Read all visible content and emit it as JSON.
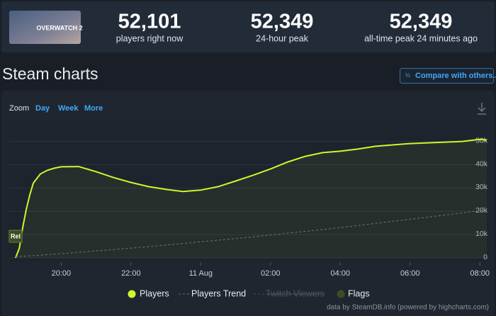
{
  "game_name": "OVERWATCH 2",
  "stats": [
    {
      "value": "52,101",
      "caption": "players right now"
    },
    {
      "value": "52,349",
      "caption": "24-hour peak"
    },
    {
      "value": "52,349",
      "caption": "all-time peak 24 minutes ago"
    }
  ],
  "section_title": "Steam charts",
  "compare_button": "Compare with others...",
  "zoom": {
    "label": "Zoom",
    "options": [
      "Day",
      "Week",
      "More"
    ]
  },
  "chart_data": {
    "type": "line",
    "x": [
      18.69,
      18.8,
      18.9,
      19.0,
      19.1,
      19.2,
      19.4,
      19.6,
      19.8,
      20.0,
      20.5,
      21.0,
      21.5,
      22.0,
      22.5,
      23.0,
      23.5,
      24.0,
      24.5,
      25.0,
      25.5,
      26.0,
      26.5,
      27.0,
      27.5,
      28.0,
      28.5,
      29.0,
      29.5,
      30.0,
      30.5,
      31.0,
      31.5,
      32.0,
      32.2
    ],
    "series": [
      {
        "name": "Players",
        "color": "#d2f52b",
        "values": [
          0,
          4200,
          13300,
          20900,
          27000,
          32100,
          36000,
          37600,
          38500,
          39100,
          39200,
          37000,
          34500,
          32400,
          30600,
          29400,
          28500,
          29100,
          30600,
          33000,
          35500,
          38200,
          41200,
          43600,
          45200,
          45800,
          46700,
          47900,
          48500,
          49100,
          49400,
          49700,
          50000,
          50900,
          50600
        ]
      },
      {
        "name": "Players Trend",
        "color": "#6b7480",
        "dashed": true,
        "values": [
          500,
          600,
          700,
          800,
          900,
          1000,
          1200,
          1400,
          1600,
          1800,
          2400,
          3000,
          3600,
          4200,
          4800,
          5500,
          6200,
          6900,
          7600,
          8300,
          9000,
          9800,
          10600,
          11400,
          12200,
          13000,
          13900,
          14800,
          15700,
          16600,
          17500,
          18400,
          19300,
          20300,
          20600
        ]
      }
    ],
    "hidden_series": [
      "Twitch Viewers"
    ],
    "flags": {
      "name": "Flags",
      "color": "#3d4d22",
      "labels": [
        "Rel"
      ]
    },
    "xlim": [
      18.51,
      32.26
    ],
    "xticks": [
      {
        "value": 20,
        "label": "20:00"
      },
      {
        "value": 22,
        "label": "22:00"
      },
      {
        "value": 24,
        "label": "11 Aug"
      },
      {
        "value": 26,
        "label": "02:00"
      },
      {
        "value": 28,
        "label": "04:00"
      },
      {
        "value": 30,
        "label": "06:00"
      },
      {
        "value": 32,
        "label": "08:00"
      }
    ],
    "ylim": [
      0,
      59000
    ],
    "yticks": [
      0,
      {
        "value": 10000,
        "label": "10k"
      },
      {
        "value": 20000,
        "label": "20k"
      },
      {
        "value": 30000,
        "label": "30k"
      },
      {
        "value": 40000,
        "label": "40k"
      },
      {
        "value": 50000,
        "label": "50k"
      }
    ],
    "grid": true
  },
  "footer": "data by SteamDB.info (powered by highcharts.com)"
}
